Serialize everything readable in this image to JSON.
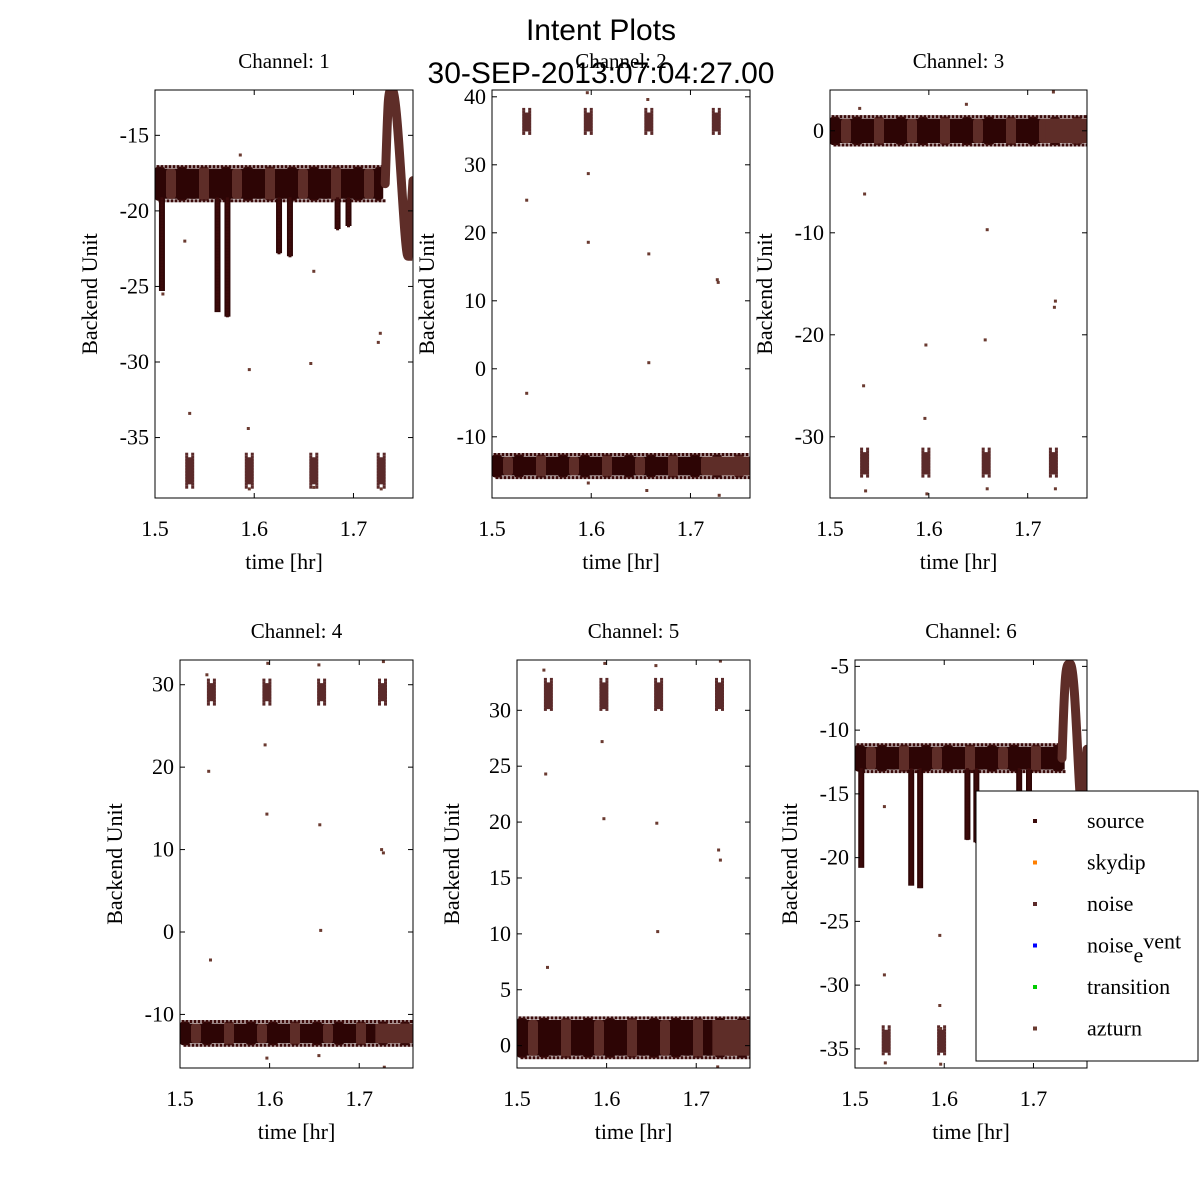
{
  "figure": {
    "title": "Intent Plots",
    "subtitle": "30-SEP-2013:07:04:27.00"
  },
  "colors": {
    "source": "#3b0a0a",
    "skydip": "#ff7f00",
    "noise": "#5b2a2a",
    "noise_event": "#0000ff",
    "transition": "#00cc00",
    "azturn": "#6a3a30",
    "band_light": "#5e2d28",
    "band_dark": "#2d0505"
  },
  "legend": {
    "placement": "lower-right",
    "entries": [
      {
        "key": "source",
        "label": "source",
        "color": "#3b0a0a"
      },
      {
        "key": "skydip",
        "label": "skydip",
        "color": "#ff7f00"
      },
      {
        "key": "noise",
        "label": "noise",
        "color": "#5b2a2a"
      },
      {
        "key": "noise_event",
        "label": "noise",
        "sub": "e",
        "rest": "vent",
        "color": "#0000ff"
      },
      {
        "key": "transition",
        "label": "transition",
        "color": "#00cc00"
      },
      {
        "key": "azturn",
        "label": "azturn",
        "color": "#6a3a30"
      }
    ]
  },
  "chart_data": [
    {
      "type": "scatter",
      "title": "Channel: 1",
      "xlabel": "time [hr]",
      "ylabel": "Backend Unit",
      "xlim": [
        1.5,
        1.76
      ],
      "ylim": [
        -39,
        -12
      ],
      "xticks": [
        1.5,
        1.6,
        1.7
      ],
      "yticks": [
        -15,
        -20,
        -25,
        -30,
        -35
      ],
      "band": {
        "center": -18.2,
        "halfwidth": 1.0,
        "x_end": 1.73
      },
      "noise_clusters": {
        "center": -37.2,
        "halfwidth": 0.9,
        "x": [
          1.535,
          1.595,
          1.66,
          1.728
        ]
      },
      "dips": [
        {
          "x": 1.507,
          "low": -25.3
        },
        {
          "x": 1.563,
          "low": -26.7
        },
        {
          "x": 1.573,
          "low": -27.0
        },
        {
          "x": 1.625,
          "low": -22.8
        },
        {
          "x": 1.636,
          "low": -23.0
        },
        {
          "x": 1.684,
          "low": -21.2
        },
        {
          "x": 1.695,
          "low": -21.0
        }
      ],
      "spike": {
        "x": 1.739,
        "peak": -12.0,
        "end_x": 1.755,
        "end_y": -23.0,
        "end_start": 1.76,
        "end_level": -18.0
      },
      "outliers": [
        [
          1.508,
          -25.5
        ],
        [
          1.53,
          -22
        ],
        [
          1.535,
          -33.4
        ],
        [
          1.586,
          -16.3
        ],
        [
          1.595,
          -30.5
        ],
        [
          1.594,
          -34.4
        ],
        [
          1.657,
          -30.1
        ],
        [
          1.66,
          -24
        ],
        [
          1.725,
          -28.7
        ],
        [
          1.727,
          -28.1
        ],
        [
          1.595,
          -38.4
        ],
        [
          1.66,
          -38.3
        ],
        [
          1.728,
          -38.4
        ]
      ]
    },
    {
      "type": "scatter",
      "title": "Channel: 2",
      "xlabel": "time [hr]",
      "ylabel": "Backend Unit",
      "xlim": [
        1.5,
        1.76
      ],
      "ylim": [
        -19,
        41
      ],
      "xticks": [
        1.5,
        1.6,
        1.7
      ],
      "yticks": [
        40,
        30,
        20,
        10,
        0,
        -10
      ],
      "band": {
        "center": -14.3,
        "halfwidth": 1.4,
        "x_end": 1.76
      },
      "noise_clusters": {
        "center": 36.3,
        "halfwidth": 1.4,
        "x": [
          1.535,
          1.597,
          1.658,
          1.726
        ]
      },
      "dips": [],
      "spike": null,
      "outliers": [
        [
          1.535,
          24.8
        ],
        [
          1.535,
          -3.6
        ],
        [
          1.597,
          28.7
        ],
        [
          1.597,
          18.6
        ],
        [
          1.658,
          16.9
        ],
        [
          1.658,
          0.9
        ],
        [
          1.727,
          13.1
        ],
        [
          1.728,
          12.7
        ],
        [
          1.596,
          40.6
        ],
        [
          1.657,
          39.6
        ],
        [
          1.597,
          -16.8
        ],
        [
          1.656,
          -17.9
        ],
        [
          1.729,
          -18.6
        ]
      ]
    },
    {
      "type": "scatter",
      "title": "Channel: 3",
      "xlabel": "time [hr]",
      "ylabel": "Backend Unit",
      "xlim": [
        1.5,
        1.76
      ],
      "ylim": [
        -36,
        4
      ],
      "xticks": [
        1.5,
        1.6,
        1.7
      ],
      "yticks": [
        0,
        -10,
        -20,
        -30
      ],
      "band": {
        "center": 0.0,
        "halfwidth": 1.2,
        "x_end": 1.76
      },
      "noise_clusters": {
        "center": -32.6,
        "halfwidth": 1.1,
        "x": [
          1.535,
          1.597,
          1.658,
          1.726
        ]
      },
      "dips": [],
      "spike": null,
      "outliers": [
        [
          1.535,
          -6.2
        ],
        [
          1.534,
          -25.0
        ],
        [
          1.597,
          -21.0
        ],
        [
          1.596,
          -28.2
        ],
        [
          1.659,
          -9.7
        ],
        [
          1.657,
          -20.5
        ],
        [
          1.727,
          -17.3
        ],
        [
          1.728,
          -16.7
        ],
        [
          1.536,
          -35.3
        ],
        [
          1.598,
          -35.6
        ],
        [
          1.659,
          -35.1
        ],
        [
          1.728,
          -35.1
        ],
        [
          1.726,
          3.8
        ],
        [
          1.638,
          2.6
        ],
        [
          1.53,
          2.2
        ]
      ]
    },
    {
      "type": "scatter",
      "title": "Channel: 4",
      "xlabel": "time [hr]",
      "ylabel": "Backend Unit",
      "xlim": [
        1.5,
        1.76
      ],
      "ylim": [
        -16.5,
        33
      ],
      "xticks": [
        1.5,
        1.6,
        1.7
      ],
      "yticks": [
        30,
        20,
        10,
        0,
        -10
      ],
      "band": {
        "center": -12.3,
        "halfwidth": 1.2,
        "x_end": 1.76
      },
      "noise_clusters": {
        "center": 29.1,
        "halfwidth": 1.1,
        "x": [
          1.535,
          1.597,
          1.658,
          1.726
        ]
      },
      "dips": [],
      "spike": null,
      "outliers": [
        [
          1.532,
          19.5
        ],
        [
          1.534,
          -3.4
        ],
        [
          1.595,
          22.7
        ],
        [
          1.597,
          14.3
        ],
        [
          1.656,
          13.0
        ],
        [
          1.657,
          0.2
        ],
        [
          1.725,
          10.0
        ],
        [
          1.727,
          9.6
        ],
        [
          1.53,
          31.2
        ],
        [
          1.598,
          32.6
        ],
        [
          1.655,
          32.4
        ],
        [
          1.727,
          32.8
        ],
        [
          1.597,
          -15.3
        ],
        [
          1.655,
          -15.0
        ],
        [
          1.728,
          -16.4
        ]
      ]
    },
    {
      "type": "scatter",
      "title": "Channel: 5",
      "xlabel": "time [hr]",
      "ylabel": "Backend Unit",
      "xlim": [
        1.5,
        1.76
      ],
      "ylim": [
        -2,
        34.5
      ],
      "xticks": [
        1.5,
        1.6,
        1.7
      ],
      "yticks": [
        30,
        25,
        20,
        15,
        10,
        5,
        0
      ],
      "band": {
        "center": 0.7,
        "halfwidth": 1.6,
        "x_end": 1.76
      },
      "noise_clusters": {
        "center": 31.3,
        "halfwidth": 1.2,
        "x": [
          1.535,
          1.597,
          1.658,
          1.726
        ]
      },
      "dips": [],
      "spike": null,
      "outliers": [
        [
          1.532,
          24.3
        ],
        [
          1.534,
          7.0
        ],
        [
          1.595,
          27.2
        ],
        [
          1.597,
          20.3
        ],
        [
          1.656,
          19.9
        ],
        [
          1.657,
          10.2
        ],
        [
          1.725,
          17.5
        ],
        [
          1.727,
          16.6
        ],
        [
          1.53,
          33.6
        ],
        [
          1.598,
          34.2
        ],
        [
          1.655,
          34.0
        ],
        [
          1.727,
          34.4
        ],
        [
          1.724,
          -1.9
        ]
      ]
    },
    {
      "type": "scatter",
      "title": "Channel: 6",
      "xlabel": "time [hr]",
      "ylabel": "Backend Unit",
      "xlim": [
        1.5,
        1.76
      ],
      "ylim": [
        -36.5,
        -4.5
      ],
      "xticks": [
        1.5,
        1.6,
        1.7
      ],
      "yticks": [
        -5,
        -10,
        -15,
        -20,
        -25,
        -30,
        -35
      ],
      "band": {
        "center": -12.2,
        "halfwidth": 0.9,
        "x_end": 1.735
      },
      "noise_clusters": {
        "center": -34.4,
        "halfwidth": 0.9,
        "x": [
          1.535,
          1.597
        ]
      },
      "dips": [
        {
          "x": 1.507,
          "low": -20.8
        },
        {
          "x": 1.563,
          "low": -22.2
        },
        {
          "x": 1.573,
          "low": -22.4
        },
        {
          "x": 1.626,
          "low": -18.6
        },
        {
          "x": 1.636,
          "low": -18.8
        },
        {
          "x": 1.684,
          "low": -17.8
        },
        {
          "x": 1.695,
          "low": -17.6
        }
      ],
      "spike": {
        "x": 1.741,
        "peak": -4.8,
        "end_x": 1.755,
        "end_y": -16.5,
        "end_start": 1.76,
        "end_level": -11.5
      },
      "outliers": [
        [
          1.533,
          -16.0
        ],
        [
          1.533,
          -29.2
        ],
        [
          1.595,
          -26.1
        ],
        [
          1.595,
          -31.6
        ],
        [
          1.596,
          -33.4
        ],
        [
          1.534,
          -36.1
        ],
        [
          1.596,
          -36.2
        ]
      ]
    }
  ]
}
